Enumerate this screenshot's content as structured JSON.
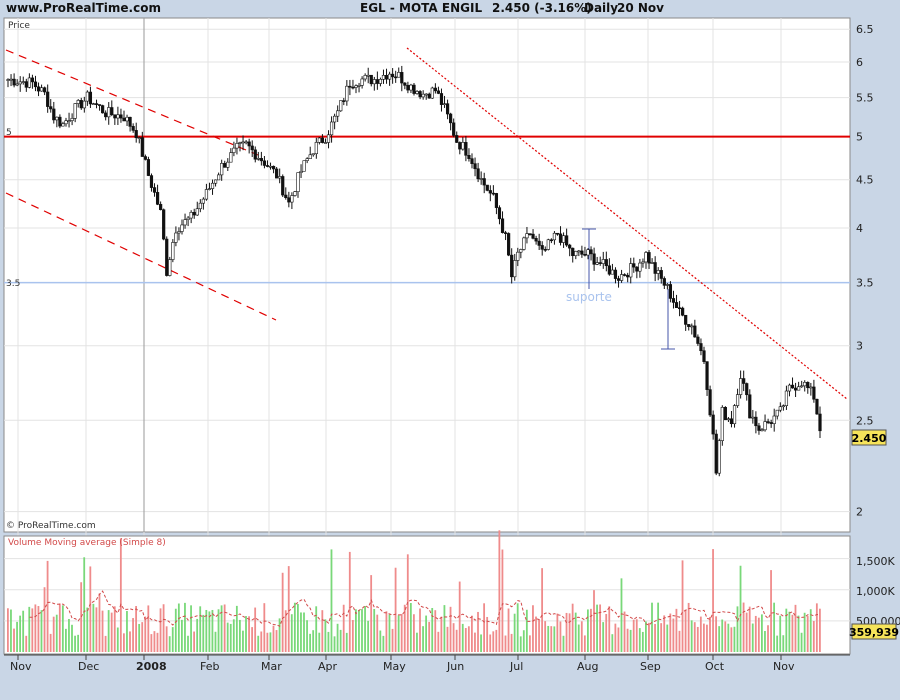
{
  "header": {
    "site": "www.ProRealTime.com",
    "symbol": "EGL - MOTA ENGIL",
    "last": "2.450 (-3.16%)",
    "period": "Daily",
    "date": "20 Nov"
  },
  "price_panel": {
    "label": "Price",
    "copyright": "© ProRealTime.com",
    "last_badge": "2.450",
    "resistance_label": "5",
    "support_label": "3.5",
    "support_text": "suporte"
  },
  "volume_panel": {
    "label": "Volume Moving average (Simple 8)",
    "last_badge": "359,939",
    "yticks": [
      "1,500K",
      "1,000K",
      "500,000"
    ]
  },
  "colors": {
    "up": "#ffffff",
    "down": "#111111",
    "resistance": "#e00000",
    "support": "#a9c3ee",
    "trend": "#e00000",
    "vol_up": "#79d879",
    "vol_down": "#ef8b8b",
    "vol_ma": "#d24a4a",
    "badge": "#f6e45a"
  },
  "chart_data": {
    "type": "candlestick",
    "y_scale": "log",
    "ylim": [
      1.95,
      6.6
    ],
    "yticks": [
      "6.5",
      "6",
      "5.5",
      "5",
      "4.5",
      "4",
      "3.5",
      "3",
      "2.5",
      "2"
    ],
    "xticks": [
      "Nov",
      "Dec",
      "2008",
      "Feb",
      "Mar",
      "Apr",
      "May",
      "Jun",
      "Jul",
      "Aug",
      "Sep",
      "Oct",
      "Nov"
    ],
    "levels": [
      5.0,
      3.5
    ],
    "close_anchors": [
      [
        0,
        5.75
      ],
      [
        8,
        5.7
      ],
      [
        12,
        5.55
      ],
      [
        15,
        5.25
      ],
      [
        18,
        5.15
      ],
      [
        22,
        5.35
      ],
      [
        26,
        5.5
      ],
      [
        32,
        5.3
      ],
      [
        38,
        5.25
      ],
      [
        42,
        5.05
      ],
      [
        46,
        4.55
      ],
      [
        50,
        4.15
      ],
      [
        52,
        3.6
      ],
      [
        55,
        4.0
      ],
      [
        60,
        4.1
      ],
      [
        65,
        4.35
      ],
      [
        70,
        4.65
      ],
      [
        75,
        4.85
      ],
      [
        78,
        4.9
      ],
      [
        84,
        4.7
      ],
      [
        88,
        4.55
      ],
      [
        92,
        4.25
      ],
      [
        96,
        4.6
      ],
      [
        100,
        4.85
      ],
      [
        104,
        5.0
      ],
      [
        108,
        5.3
      ],
      [
        112,
        5.7
      ],
      [
        115,
        5.75
      ],
      [
        120,
        5.75
      ],
      [
        125,
        5.85
      ],
      [
        128,
        5.8
      ],
      [
        132,
        5.65
      ],
      [
        136,
        5.55
      ],
      [
        140,
        5.6
      ],
      [
        143,
        5.35
      ],
      [
        147,
        4.95
      ],
      [
        151,
        4.8
      ],
      [
        155,
        4.5
      ],
      [
        159,
        4.3
      ],
      [
        163,
        3.9
      ],
      [
        165,
        3.55
      ],
      [
        167,
        3.75
      ],
      [
        171,
        3.95
      ],
      [
        175,
        3.75
      ],
      [
        180,
        3.95
      ],
      [
        185,
        3.75
      ],
      [
        190,
        3.75
      ],
      [
        195,
        3.65
      ],
      [
        200,
        3.55
      ],
      [
        203,
        3.6
      ],
      [
        206,
        3.65
      ],
      [
        209,
        3.75
      ],
      [
        212,
        3.6
      ],
      [
        216,
        3.45
      ],
      [
        220,
        3.25
      ],
      [
        224,
        3.15
      ],
      [
        228,
        2.9
      ],
      [
        231,
        2.4
      ],
      [
        232,
        2.2
      ],
      [
        234,
        2.55
      ],
      [
        237,
        2.5
      ],
      [
        240,
        2.8
      ],
      [
        243,
        2.55
      ],
      [
        246,
        2.45
      ],
      [
        250,
        2.5
      ],
      [
        253,
        2.55
      ],
      [
        256,
        2.7
      ],
      [
        260,
        2.75
      ],
      [
        264,
        2.65
      ],
      [
        266,
        2.45
      ]
    ]
  }
}
